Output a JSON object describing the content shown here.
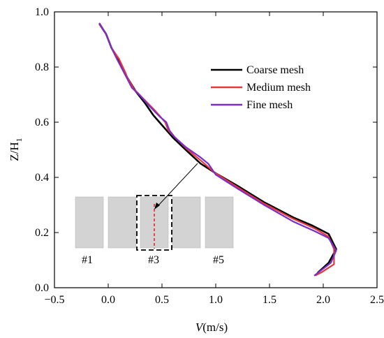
{
  "chart_data": {
    "type": "line",
    "xlabel_var": "V",
    "xlabel_unit": "(m/s)",
    "ylabel_var": "Z/H",
    "ylabel_sub": "1",
    "xlim": [
      -0.5,
      2.5
    ],
    "ylim": [
      0.0,
      1.0
    ],
    "xticks": [
      "−0.5",
      "0.0",
      "0.5",
      "1.0",
      "1.5",
      "2.0",
      "2.5"
    ],
    "xtick_values": [
      -0.5,
      0.0,
      0.5,
      1.0,
      1.5,
      2.0,
      2.5
    ],
    "yticks": [
      "0.0",
      "0.2",
      "0.4",
      "0.6",
      "0.8",
      "1.0"
    ],
    "ytick_values": [
      0.0,
      0.2,
      0.4,
      0.6,
      0.8,
      1.0
    ],
    "grid": false,
    "legend_position": "top-right",
    "series": [
      {
        "name": "Coarse mesh",
        "color": "#000000",
        "points": [
          [
            -0.08,
            0.955
          ],
          [
            -0.02,
            0.92
          ],
          [
            0.03,
            0.87
          ],
          [
            0.1,
            0.82
          ],
          [
            0.18,
            0.76
          ],
          [
            0.26,
            0.71
          ],
          [
            0.34,
            0.67
          ],
          [
            0.42,
            0.625
          ],
          [
            0.51,
            0.585
          ],
          [
            0.6,
            0.545
          ],
          [
            0.72,
            0.5
          ],
          [
            0.86,
            0.45
          ],
          [
            1.0,
            0.415
          ],
          [
            1.2,
            0.37
          ],
          [
            1.45,
            0.31
          ],
          [
            1.72,
            0.255
          ],
          [
            1.9,
            0.225
          ],
          [
            2.05,
            0.195
          ],
          [
            2.12,
            0.14
          ],
          [
            2.05,
            0.09
          ],
          [
            1.95,
            0.055
          ]
        ]
      },
      {
        "name": "Medium mesh",
        "color": "#e8363a",
        "points": [
          [
            -0.08,
            0.955
          ],
          [
            -0.02,
            0.92
          ],
          [
            0.03,
            0.87
          ],
          [
            0.1,
            0.83
          ],
          [
            0.16,
            0.78
          ],
          [
            0.18,
            0.76
          ],
          [
            0.24,
            0.72
          ],
          [
            0.34,
            0.68
          ],
          [
            0.44,
            0.64
          ],
          [
            0.53,
            0.6
          ],
          [
            0.56,
            0.57
          ],
          [
            0.62,
            0.545
          ],
          [
            0.74,
            0.5
          ],
          [
            0.88,
            0.455
          ],
          [
            0.98,
            0.42
          ],
          [
            1.2,
            0.365
          ],
          [
            1.45,
            0.305
          ],
          [
            1.72,
            0.25
          ],
          [
            1.92,
            0.215
          ],
          [
            2.05,
            0.185
          ],
          [
            2.1,
            0.14
          ],
          [
            2.1,
            0.085
          ],
          [
            1.98,
            0.055
          ],
          [
            1.93,
            0.045
          ]
        ]
      },
      {
        "name": "Fine mesh",
        "color": "#7a2ec8",
        "points": [
          [
            -0.08,
            0.958
          ],
          [
            -0.02,
            0.92
          ],
          [
            0.03,
            0.87
          ],
          [
            0.08,
            0.83
          ],
          [
            0.16,
            0.77
          ],
          [
            0.22,
            0.725
          ],
          [
            0.3,
            0.695
          ],
          [
            0.38,
            0.66
          ],
          [
            0.48,
            0.62
          ],
          [
            0.54,
            0.6
          ],
          [
            0.57,
            0.57
          ],
          [
            0.62,
            0.545
          ],
          [
            0.72,
            0.51
          ],
          [
            0.85,
            0.475
          ],
          [
            0.93,
            0.45
          ],
          [
            1.0,
            0.41
          ],
          [
            1.2,
            0.36
          ],
          [
            1.45,
            0.3
          ],
          [
            1.72,
            0.24
          ],
          [
            1.92,
            0.205
          ],
          [
            2.05,
            0.18
          ],
          [
            2.12,
            0.135
          ],
          [
            2.07,
            0.09
          ],
          [
            1.97,
            0.06
          ],
          [
            1.92,
            0.045
          ]
        ]
      }
    ],
    "inset": {
      "labels": [
        "#1",
        "#3",
        "#5"
      ],
      "block_fill": "#d3d3d3",
      "highlight_line_color": "#e8363a"
    }
  }
}
